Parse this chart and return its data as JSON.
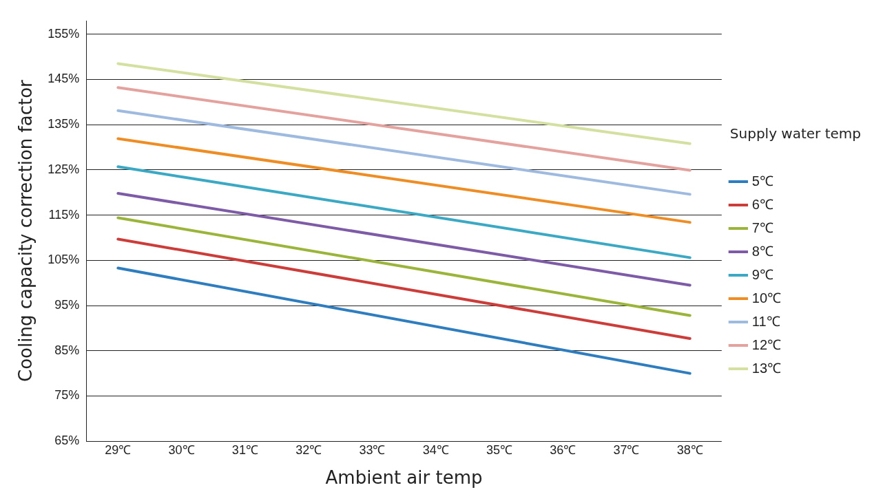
{
  "chart_data": {
    "type": "line",
    "xlabel": "Ambient air temp",
    "ylabel": "Cooling capacity correction factor",
    "legend_title": "Supply water temp",
    "legend": "right",
    "grid": "y",
    "marker": "none",
    "line_style": "solid",
    "x": [
      29,
      38
    ],
    "xlim": [
      28.5,
      38.5
    ],
    "xticks": [
      {
        "value": 29,
        "label": "29℃"
      },
      {
        "value": 30,
        "label": "30℃"
      },
      {
        "value": 31,
        "label": "31℃"
      },
      {
        "value": 32,
        "label": "32℃"
      },
      {
        "value": 33,
        "label": "33℃"
      },
      {
        "value": 34,
        "label": "34℃"
      },
      {
        "value": 35,
        "label": "35℃"
      },
      {
        "value": 36,
        "label": "36℃"
      },
      {
        "value": 37,
        "label": "37℃"
      },
      {
        "value": 38,
        "label": "38℃"
      }
    ],
    "ylim": [
      65,
      158
    ],
    "yticks": [
      {
        "value": 65,
        "label": "65%"
      },
      {
        "value": 75,
        "label": "75%"
      },
      {
        "value": 85,
        "label": "85%"
      },
      {
        "value": 95,
        "label": "95%"
      },
      {
        "value": 105,
        "label": "105%"
      },
      {
        "value": 115,
        "label": "115%"
      },
      {
        "value": 125,
        "label": "125%"
      },
      {
        "value": 135,
        "label": "135%"
      },
      {
        "value": 145,
        "label": "145%"
      },
      {
        "value": 155,
        "label": "155%"
      }
    ],
    "series": [
      {
        "name": "5℃",
        "color": "#2e7dbf",
        "values": [
          103.3,
          80.0
        ]
      },
      {
        "name": "6℃",
        "color": "#cc3d3a",
        "values": [
          109.7,
          87.7
        ]
      },
      {
        "name": "7℃",
        "color": "#9bb53a",
        "values": [
          114.4,
          92.8
        ]
      },
      {
        "name": "8℃",
        "color": "#7d5ba6",
        "values": [
          119.8,
          99.5
        ]
      },
      {
        "name": "9℃",
        "color": "#3ba9c4",
        "values": [
          125.7,
          105.6
        ]
      },
      {
        "name": "10℃",
        "color": "#ee8d24",
        "values": [
          131.9,
          113.4
        ]
      },
      {
        "name": "11℃",
        "color": "#9fbadf",
        "values": [
          138.1,
          119.6
        ]
      },
      {
        "name": "12℃",
        "color": "#e3a29e",
        "values": [
          143.2,
          124.9
        ]
      },
      {
        "name": "13℃",
        "color": "#d3e0a0",
        "values": [
          148.5,
          130.8
        ]
      }
    ]
  }
}
